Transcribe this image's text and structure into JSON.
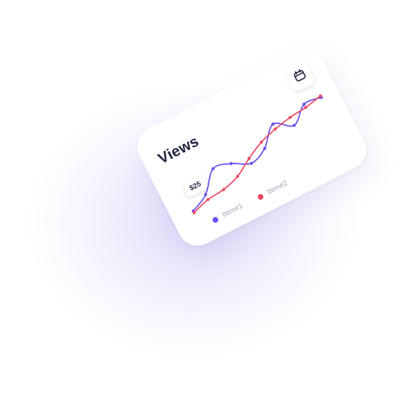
{
  "card": {
    "title": "Views",
    "tooltip": "$25"
  },
  "legend": [
    {
      "label": "Item#1",
      "color": "#6a4ff0"
    },
    {
      "label": "Item#2",
      "color": "#ec4960"
    }
  ],
  "icons": {
    "calendar": "calendar-icon"
  },
  "chart_data": {
    "type": "line",
    "x": [
      0,
      1,
      2,
      3,
      4,
      5,
      6,
      7,
      8,
      9
    ],
    "series": [
      {
        "name": "Item#1",
        "color": "#6a4ff0",
        "values": [
          12,
          22,
          44,
          40,
          30,
          38,
          58,
          46,
          62,
          60
        ]
      },
      {
        "name": "Item#2",
        "color": "#ec4960",
        "values": [
          10,
          16,
          18,
          24,
          36,
          46,
          52,
          56,
          58,
          62
        ]
      }
    ],
    "xlabel": "",
    "ylabel": "",
    "ylim": [
      0,
      70
    ],
    "grid": false,
    "legend_position": "bottom"
  }
}
